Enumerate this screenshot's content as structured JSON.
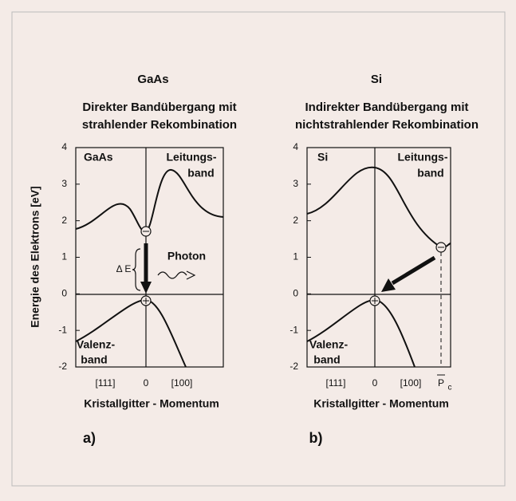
{
  "panels": [
    {
      "material": "GaAs",
      "subtitle": [
        "Direkter Bandübergang mit",
        "strahlender Rekombination"
      ],
      "inner_label": "GaAs",
      "conduction": [
        "Leitungs-",
        "band"
      ],
      "valence": [
        "Valenz-",
        "band"
      ],
      "xticks": [
        "[111]",
        "0",
        "[100]"
      ],
      "xlabel": "Kristallgitter - Momentum",
      "tag": "a)",
      "delta": "Δ E",
      "photon": "Photon"
    },
    {
      "material": "Si",
      "subtitle": [
        "Indirekter Bandübergang mit",
        "nichtstrahlender Rekombination"
      ],
      "inner_label": "Si",
      "conduction": [
        "Leitungs-",
        "band"
      ],
      "valence": [
        "Valenz-",
        "band"
      ],
      "xticks": [
        "[111]",
        "0",
        "[100]"
      ],
      "pc": [
        "P",
        "c"
      ],
      "xlabel": "Kristallgitter - Momentum",
      "tag": "b)"
    }
  ],
  "ylabel": "Energie des Elektrons [eV]",
  "yticks": [
    "4",
    "3",
    "2",
    "1",
    "0",
    "-1",
    "-2"
  ]
}
